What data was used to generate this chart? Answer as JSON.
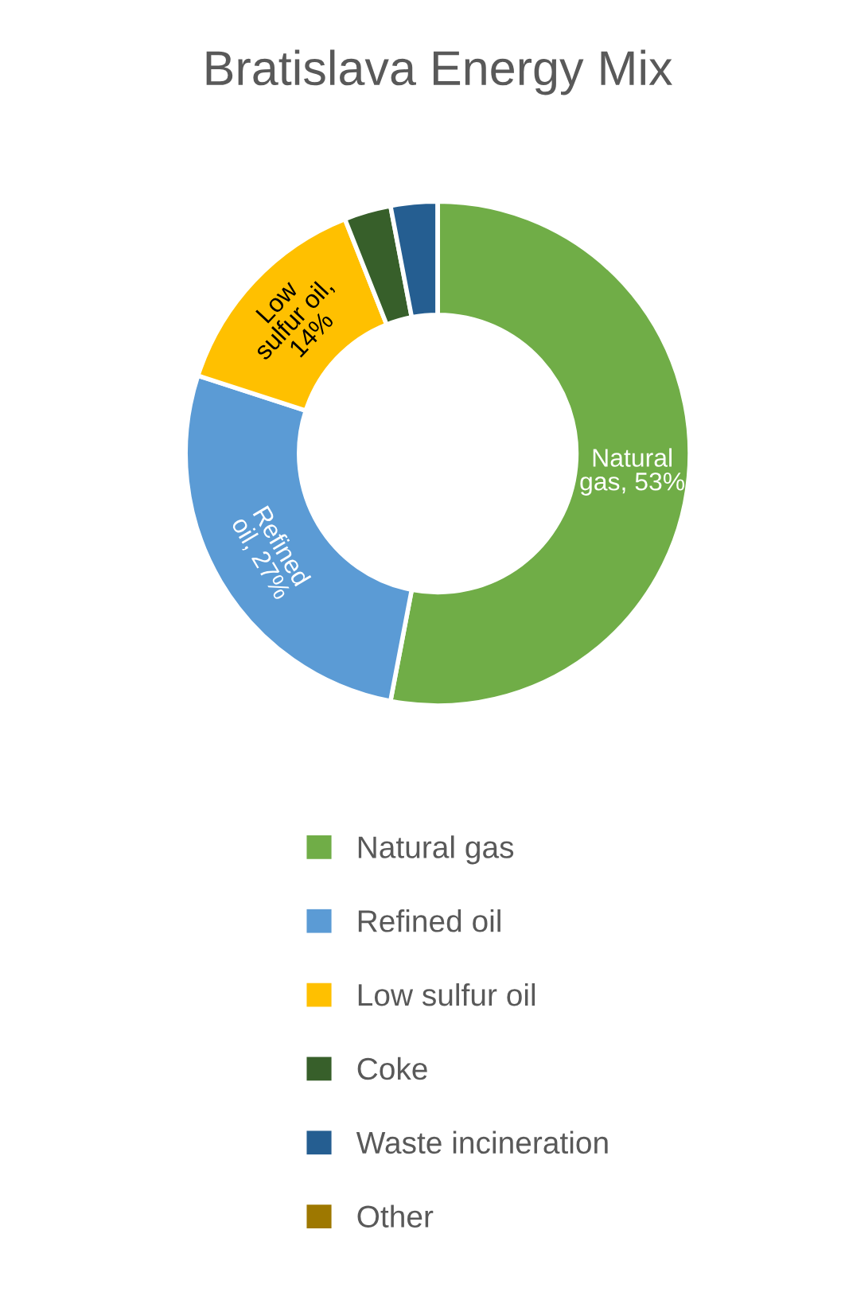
{
  "chart_data": {
    "type": "donut",
    "title": "Bratislava Energy Mix",
    "categories": [
      "Natural gas",
      "Refined oil",
      "Low sulfur oil",
      "Coke",
      "Waste incineration",
      "Other"
    ],
    "values": [
      53,
      27,
      14,
      3,
      3,
      0
    ],
    "colors": [
      "#70ad47",
      "#5b9bd5",
      "#ffc000",
      "#375f2a",
      "#255e91",
      "#9e7800"
    ],
    "value_labels": [
      "Natural\ngas, 53%",
      "Refined\noil, 27%",
      "Low\nsulfur oil,\n14%",
      null,
      null,
      null
    ],
    "legend": "bottom"
  }
}
